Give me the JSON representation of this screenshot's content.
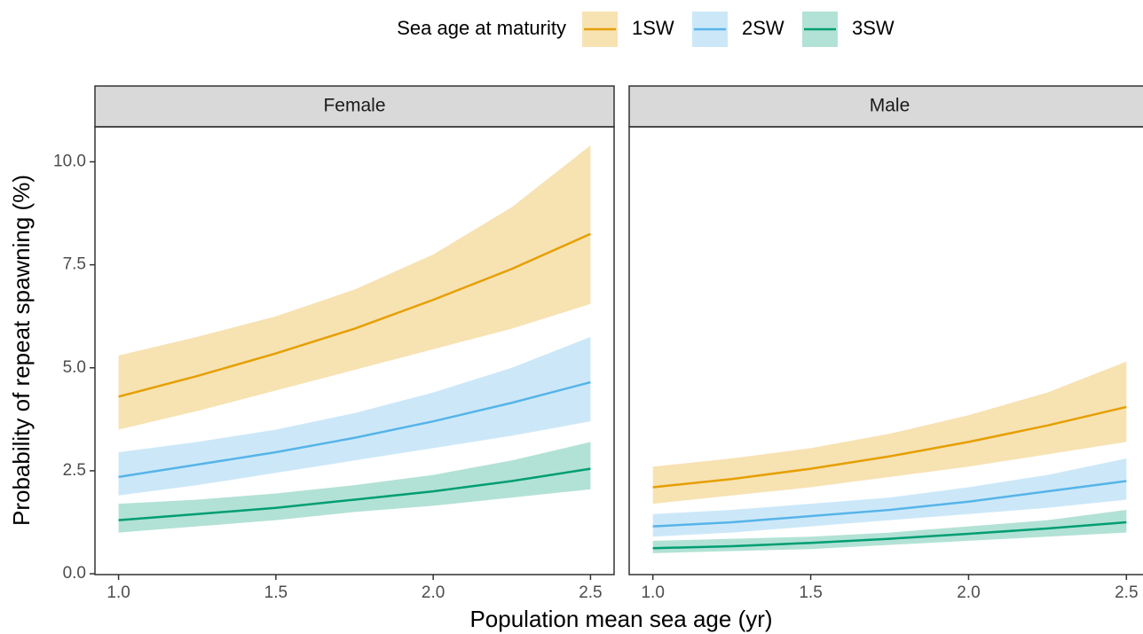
{
  "chart_data": {
    "type": "line",
    "legend_title": "Sea age at maturity",
    "x_label": "Population mean sea age (yr)",
    "y_label": "Probability of repeat spawning (%)",
    "x": [
      1.0,
      1.25,
      1.5,
      1.75,
      2.0,
      2.25,
      2.5
    ],
    "xlim": [
      0.925,
      2.575
    ],
    "xticks": [
      {
        "value": 1,
        "label": "1.0"
      },
      1.5,
      {
        "value": 2,
        "label": "2.0"
      },
      2.5
    ],
    "ylim": [
      -0.02,
      10.85
    ],
    "yticks": [
      {
        "value": 0,
        "label": "0.0"
      },
      2.5,
      {
        "value": 5,
        "label": "5.0"
      },
      7.5,
      {
        "value": 10,
        "label": "10.0"
      }
    ],
    "panels": [
      {
        "title": "Female",
        "series": [
          {
            "name": "1SW",
            "color": "#E69F00",
            "values": [
              4.3,
              4.8,
              5.35,
              5.95,
              6.65,
              7.4,
              8.25
            ],
            "lower": [
              3.5,
              3.95,
              4.45,
              4.95,
              5.45,
              5.95,
              6.55
            ],
            "upper": [
              5.3,
              5.75,
              6.25,
              6.9,
              7.75,
              8.9,
              10.4
            ]
          },
          {
            "name": "2SW",
            "color": "#56B4E9",
            "values": [
              2.35,
              2.65,
              2.95,
              3.3,
              3.7,
              4.15,
              4.65
            ],
            "lower": [
              1.9,
              2.15,
              2.45,
              2.75,
              3.05,
              3.35,
              3.7
            ],
            "upper": [
              2.95,
              3.2,
              3.5,
              3.9,
              4.4,
              5.0,
              5.75
            ]
          },
          {
            "name": "3SW",
            "color": "#009E73",
            "values": [
              1.3,
              1.45,
              1.6,
              1.8,
              2.0,
              2.25,
              2.55
            ],
            "lower": [
              1.0,
              1.15,
              1.3,
              1.5,
              1.65,
              1.85,
              2.05
            ],
            "upper": [
              1.7,
              1.8,
              1.95,
              2.15,
              2.4,
              2.75,
              3.2
            ]
          }
        ]
      },
      {
        "title": "Male",
        "series": [
          {
            "name": "1SW",
            "color": "#E69F00",
            "values": [
              2.1,
              2.3,
              2.55,
              2.85,
              3.2,
              3.6,
              4.05
            ],
            "lower": [
              1.7,
              1.9,
              2.1,
              2.35,
              2.6,
              2.9,
              3.2
            ],
            "upper": [
              2.6,
              2.8,
              3.05,
              3.4,
              3.85,
              4.4,
              5.15
            ]
          },
          {
            "name": "2SW",
            "color": "#56B4E9",
            "values": [
              1.15,
              1.25,
              1.4,
              1.55,
              1.75,
              2.0,
              2.25
            ],
            "lower": [
              0.9,
              1.0,
              1.15,
              1.3,
              1.45,
              1.6,
              1.8
            ],
            "upper": [
              1.45,
              1.55,
              1.7,
              1.85,
              2.1,
              2.4,
              2.8
            ]
          },
          {
            "name": "3SW",
            "color": "#009E73",
            "values": [
              0.62,
              0.67,
              0.75,
              0.85,
              0.97,
              1.1,
              1.25
            ],
            "lower": [
              0.5,
              0.55,
              0.6,
              0.7,
              0.8,
              0.9,
              1.0
            ],
            "upper": [
              0.8,
              0.85,
              0.9,
              1.0,
              1.15,
              1.3,
              1.55
            ]
          }
        ]
      }
    ]
  }
}
